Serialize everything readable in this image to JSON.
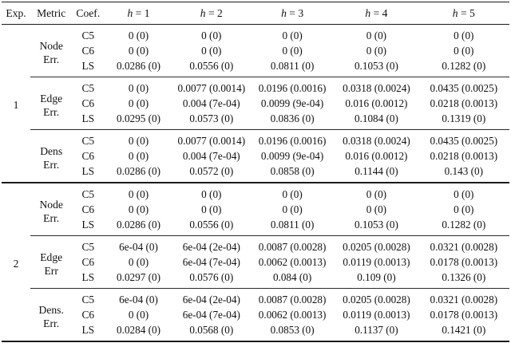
{
  "page": {
    "background": "#ffffff",
    "text_color": "#111111",
    "rule_color": "#1a1a1a"
  },
  "header": {
    "exp": "Exp.",
    "metric": "Metric",
    "coef": "Coef.",
    "h": [
      {
        "var": "h",
        "rest": " = 1"
      },
      {
        "var": "h",
        "rest": " = 2"
      },
      {
        "var": "h",
        "rest": " = 3"
      },
      {
        "var": "h",
        "rest": " = 4"
      },
      {
        "var": "h",
        "rest": " = 5"
      }
    ]
  },
  "exps": [
    {
      "exp": "1",
      "blocks": [
        {
          "metric": [
            "Node",
            "Err."
          ],
          "rows": [
            {
              "coef": "C5",
              "v": [
                "0 (0)",
                "0 (0)",
                "0 (0)",
                "0 (0)",
                "0 (0)"
              ]
            },
            {
              "coef": "C6",
              "v": [
                "0 (0)",
                "0 (0)",
                "0 (0)",
                "0 (0)",
                "0 (0)"
              ]
            },
            {
              "coef": "LS",
              "v": [
                "0.0286 (0)",
                "0.0556 (0)",
                "0.0811 (0)",
                "0.1053 (0)",
                "0.1282 (0)"
              ]
            }
          ]
        },
        {
          "metric": [
            "Edge",
            "Err."
          ],
          "rows": [
            {
              "coef": "C5",
              "v": [
                "0 (0)",
                "0.0077 (0.0014)",
                "0.0196 (0.0016)",
                "0.0318 (0.0024)",
                "0.0435 (0.0025)"
              ]
            },
            {
              "coef": "C6",
              "v": [
                "0 (0)",
                "0.004 (7e-04)",
                "0.0099 (9e-04)",
                "0.016 (0.0012)",
                "0.0218 (0.0013)"
              ]
            },
            {
              "coef": "LS",
              "v": [
                "0.0295 (0)",
                "0.0573 (0)",
                "0.0836 (0)",
                "0.1084 (0)",
                "0.1319 (0)"
              ]
            }
          ]
        },
        {
          "metric": [
            "Dens",
            "Err."
          ],
          "rows": [
            {
              "coef": "C5",
              "v": [
                "0 (0)",
                "0.0077 (0.0014)",
                "0.0196 (0.0016)",
                "0.0318 (0.0024)",
                "0.0435 (0.0025)"
              ]
            },
            {
              "coef": "C6",
              "v": [
                "0 (0)",
                "0.004 (7e-04)",
                "0.0099 (9e-04)",
                "0.016 (0.0012)",
                "0.0218 (0.0013)"
              ]
            },
            {
              "coef": "LS",
              "v": [
                "0.0286 (0)",
                "0.0572 (0)",
                "0.0858 (0)",
                "0.1144 (0)",
                "0.143 (0)"
              ]
            }
          ]
        }
      ]
    },
    {
      "exp": "2",
      "blocks": [
        {
          "metric": [
            "Node",
            "Err."
          ],
          "rows": [
            {
              "coef": "C5",
              "v": [
                "0 (0)",
                "0 (0)",
                "0 (0)",
                "0 (0)",
                "0 (0)"
              ]
            },
            {
              "coef": "C6",
              "v": [
                "0 (0)",
                "0 (0)",
                "0 (0)",
                "0 (0)",
                "0 (0)"
              ]
            },
            {
              "coef": "LS",
              "v": [
                "0.0286 (0)",
                "0.0556 (0)",
                "0.0811 (0)",
                "0.1053 (0)",
                "0.1282 (0)"
              ]
            }
          ]
        },
        {
          "metric": [
            "Edge",
            "Err"
          ],
          "rows": [
            {
              "coef": "C5",
              "v": [
                "6e-04 (0)",
                "6e-04 (2e-04)",
                "0.0087 (0.0028)",
                "0.0205 (0.0028)",
                "0.0321 (0.0028)"
              ]
            },
            {
              "coef": "C6",
              "v": [
                "0 (0)",
                "6e-04 (7e-04)",
                "0.0062 (0.0013)",
                "0.0119 (0.0013)",
                "0.0178 (0.0013)"
              ]
            },
            {
              "coef": "LS",
              "v": [
                "0.0297 (0)",
                "0.0576 (0)",
                "0.084 (0)",
                "0.109 (0)",
                "0.1326 (0)"
              ]
            }
          ]
        },
        {
          "metric": [
            "Dens.",
            "Err."
          ],
          "rows": [
            {
              "coef": "C5",
              "v": [
                "6e-04 (0)",
                "6e-04 (2e-04)",
                "0.0087 (0.0028)",
                "0.0205 (0.0028)",
                "0.0321 (0.0028)"
              ]
            },
            {
              "coef": "C6",
              "v": [
                "0 (0)",
                "6e-04 (7e-04)",
                "0.0062 (0.0013)",
                "0.0119 (0.0013)",
                "0.0178 (0.0013)"
              ]
            },
            {
              "coef": "LS",
              "v": [
                "0.0284 (0)",
                "0.0568 (0)",
                "0.0853 (0)",
                "0.1137 (0)",
                "0.1421 (0)"
              ]
            }
          ]
        }
      ]
    }
  ]
}
